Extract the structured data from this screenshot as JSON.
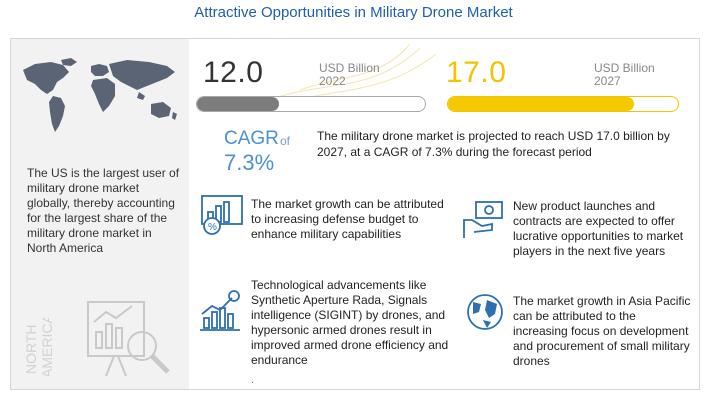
{
  "title": "Attractive Opportunities in Military Drone Market",
  "left_panel": {
    "summary": "The US is the largest user of military drone market globally, thereby accounting for the largest share of the military drone market in North America",
    "region_label": "NORTH AMERICA",
    "icons": [
      "world-map-icon",
      "analytics-magnifier-icon"
    ]
  },
  "stats": {
    "start": {
      "value": "12.0",
      "unit": "USD Billion",
      "year": "2022",
      "bar_fraction": 0.36
    },
    "end": {
      "value": "17.0",
      "unit": "USD Billion",
      "year": "2027",
      "bar_fraction": 0.81
    }
  },
  "cagr": {
    "label": "CAGR",
    "of": "of",
    "value": "7.3%",
    "projection": "The military drone market is projected to reach USD 17.0 billion by 2027, at a CAGR of 7.3% during the forecast period"
  },
  "cards": [
    {
      "icon": "budget-chart-icon",
      "text": "The market growth can be attributed to increasing defense budget to enhance military capabilities"
    },
    {
      "icon": "cash-hand-icon",
      "text": "New product launches and contracts are expected to offer lucrative opportunities to market players in the next five years"
    },
    {
      "icon": "growth-dollar-icon",
      "text": "Technological advancements like Synthetic Aperture Rada, Signals intelligence (SIGINT) by drones, and hypersonic armed drones result in improved armed drone efficiency and endurance"
    },
    {
      "icon": "globe-icon",
      "text": "The market growth in Asia Pacific can be attributed to the increasing focus on development and procurement of small military drones"
    }
  ],
  "trailing_mark": ".",
  "colors": {
    "title": "#1f5fa8",
    "cagr": "#4b8fd6",
    "gold": "#f5c800",
    "grey_bar": "#7c7c7c",
    "panel": "#f2f2f2",
    "icon_blue": "#2e6fae"
  }
}
